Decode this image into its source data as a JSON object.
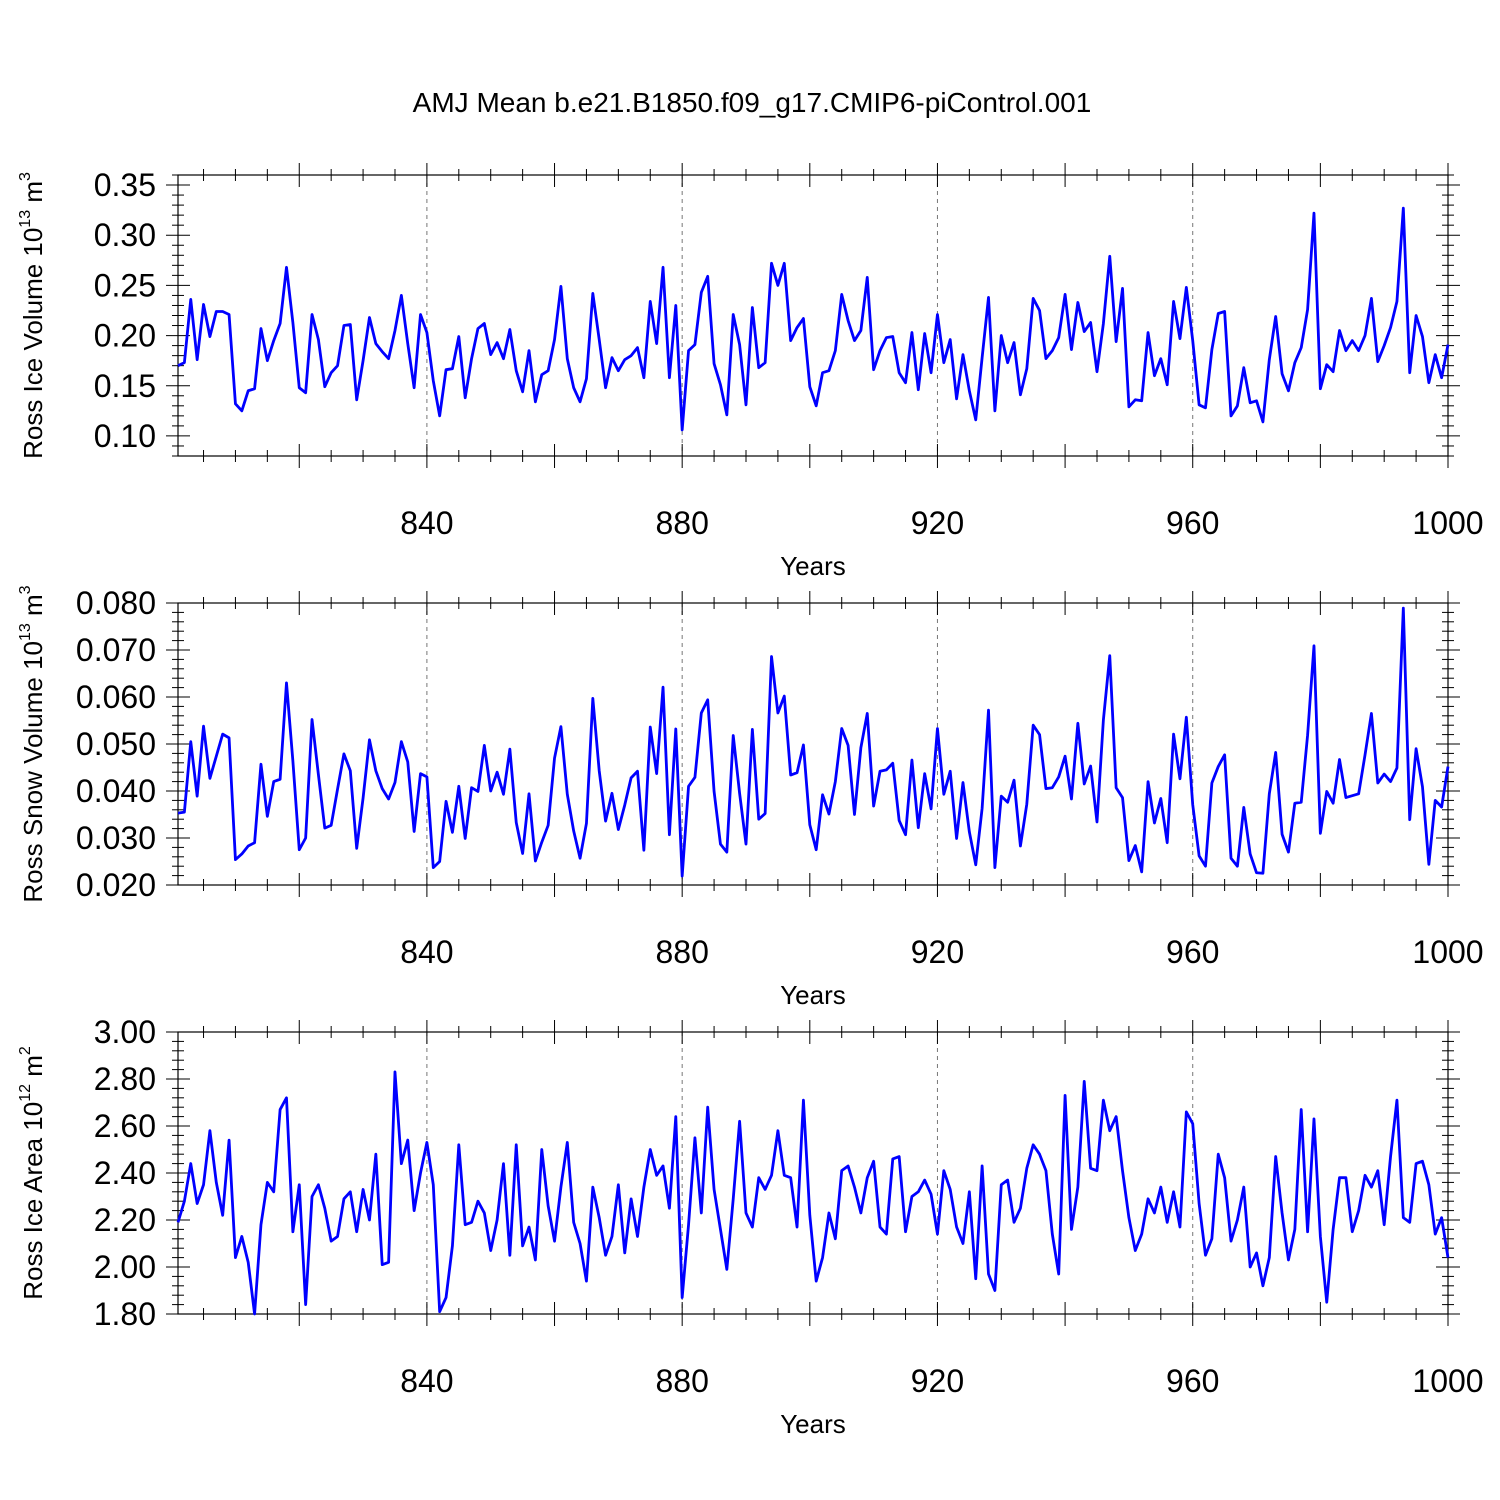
{
  "title": "AMJ Mean b.e21.B1850.f09_g17.CMIP6-piControl.001",
  "chart_data": [
    {
      "type": "line",
      "xlabel": "Years",
      "ylabel": {
        "base": "Ross Ice Volume 10",
        "exp": "13",
        "unit": " m",
        "unit_exp": "3"
      },
      "xlim": [
        801,
        1000
      ],
      "ylim": [
        0.08,
        0.36
      ],
      "xticks": [
        840,
        880,
        920,
        960,
        1000
      ],
      "xtick_labels": [
        "840",
        "880",
        "920",
        "960",
        "1000"
      ],
      "yticks": [
        0.1,
        0.15,
        0.2,
        0.25,
        0.3,
        0.35
      ],
      "ytick_labels": [
        "0.10",
        "0.15",
        "0.20",
        "0.25",
        "0.30",
        "0.35"
      ],
      "grid_x": true,
      "color": "#0000ff",
      "x_start": 801,
      "values": [
        0.17,
        0.173,
        0.236,
        0.176,
        0.231,
        0.199,
        0.224,
        0.224,
        0.221,
        0.132,
        0.125,
        0.145,
        0.147,
        0.207,
        0.175,
        0.195,
        0.212,
        0.268,
        0.213,
        0.148,
        0.143,
        0.221,
        0.196,
        0.149,
        0.163,
        0.17,
        0.21,
        0.211,
        0.136,
        0.175,
        0.218,
        0.192,
        0.184,
        0.177,
        0.205,
        0.24,
        0.192,
        0.148,
        0.221,
        0.203,
        0.155,
        0.12,
        0.166,
        0.167,
        0.199,
        0.138,
        0.177,
        0.207,
        0.212,
        0.181,
        0.193,
        0.177,
        0.206,
        0.165,
        0.144,
        0.185,
        0.134,
        0.161,
        0.165,
        0.196,
        0.249,
        0.177,
        0.148,
        0.134,
        0.157,
        0.242,
        0.196,
        0.148,
        0.178,
        0.165,
        0.176,
        0.18,
        0.188,
        0.158,
        0.234,
        0.192,
        0.268,
        0.158,
        0.23,
        0.106,
        0.185,
        0.191,
        0.243,
        0.259,
        0.172,
        0.151,
        0.121,
        0.221,
        0.191,
        0.131,
        0.228,
        0.168,
        0.173,
        0.272,
        0.25,
        0.272,
        0.195,
        0.208,
        0.217,
        0.149,
        0.13,
        0.163,
        0.165,
        0.185,
        0.241,
        0.215,
        0.195,
        0.205,
        0.258,
        0.166,
        0.185,
        0.198,
        0.199,
        0.163,
        0.153,
        0.203,
        0.146,
        0.202,
        0.163,
        0.221,
        0.173,
        0.196,
        0.137,
        0.181,
        0.145,
        0.116,
        0.178,
        0.238,
        0.125,
        0.2,
        0.173,
        0.193,
        0.141,
        0.167,
        0.237,
        0.225,
        0.177,
        0.185,
        0.198,
        0.241,
        0.186,
        0.233,
        0.204,
        0.213,
        0.164,
        0.212,
        0.279,
        0.194,
        0.247,
        0.129,
        0.136,
        0.135,
        0.203,
        0.16,
        0.177,
        0.151,
        0.234,
        0.197,
        0.248,
        0.195,
        0.131,
        0.128,
        0.186,
        0.222,
        0.224,
        0.12,
        0.13,
        0.168,
        0.133,
        0.135,
        0.114,
        0.176,
        0.219,
        0.162,
        0.145,
        0.173,
        0.188,
        0.226,
        0.322,
        0.147,
        0.171,
        0.164,
        0.205,
        0.185,
        0.195,
        0.185,
        0.2,
        0.237,
        0.174,
        0.19,
        0.208,
        0.234,
        0.327,
        0.163,
        0.22,
        0.199,
        0.153,
        0.181,
        0.158,
        0.191
      ]
    },
    {
      "type": "line",
      "xlabel": "Years",
      "ylabel": {
        "base": "Ross Snow Volume 10",
        "exp": "13",
        "unit": " m",
        "unit_exp": "3"
      },
      "xlim": [
        801,
        1000
      ],
      "ylim": [
        0.02,
        0.08
      ],
      "xticks": [
        840,
        880,
        920,
        960,
        1000
      ],
      "xtick_labels": [
        "840",
        "880",
        "920",
        "960",
        "1000"
      ],
      "yticks": [
        0.02,
        0.03,
        0.04,
        0.05,
        0.06,
        0.07,
        0.08
      ],
      "ytick_labels": [
        "0.020",
        "0.030",
        "0.040",
        "0.050",
        "0.060",
        "0.070",
        "0.080"
      ],
      "grid_x": true,
      "color": "#0000ff",
      "x_start": 801,
      "values": [
        0.0353,
        0.0355,
        0.0505,
        0.0389,
        0.0538,
        0.0427,
        0.0474,
        0.0521,
        0.0513,
        0.0254,
        0.0266,
        0.0283,
        0.029,
        0.0457,
        0.0346,
        0.042,
        0.0425,
        0.063,
        0.0464,
        0.0275,
        0.03,
        0.0552,
        0.0435,
        0.0321,
        0.0327,
        0.0404,
        0.0479,
        0.0443,
        0.0278,
        0.0385,
        0.0509,
        0.0443,
        0.0405,
        0.0383,
        0.0418,
        0.0505,
        0.0462,
        0.0314,
        0.0437,
        0.043,
        0.0237,
        0.025,
        0.0378,
        0.0312,
        0.041,
        0.0299,
        0.0407,
        0.0399,
        0.0497,
        0.04,
        0.044,
        0.0393,
        0.0489,
        0.0333,
        0.0267,
        0.0394,
        0.0251,
        0.0291,
        0.0327,
        0.047,
        0.0537,
        0.0393,
        0.0315,
        0.0257,
        0.0331,
        0.0597,
        0.0443,
        0.0336,
        0.0395,
        0.0318,
        0.037,
        0.0428,
        0.0442,
        0.0274,
        0.0536,
        0.0437,
        0.0621,
        0.0307,
        0.0532,
        0.0219,
        0.041,
        0.0429,
        0.0566,
        0.0594,
        0.0399,
        0.0287,
        0.027,
        0.0518,
        0.0395,
        0.0287,
        0.0531,
        0.034,
        0.0352,
        0.0686,
        0.0566,
        0.0602,
        0.0434,
        0.0439,
        0.0498,
        0.0328,
        0.0275,
        0.0392,
        0.0351,
        0.042,
        0.0533,
        0.0497,
        0.035,
        0.0492,
        0.0565,
        0.0368,
        0.0442,
        0.0445,
        0.0459,
        0.0337,
        0.0307,
        0.0466,
        0.0322,
        0.0437,
        0.0362,
        0.0533,
        0.0393,
        0.0442,
        0.0299,
        0.0418,
        0.0313,
        0.0243,
        0.0363,
        0.0572,
        0.0237,
        0.0389,
        0.0376,
        0.0423,
        0.0283,
        0.0372,
        0.054,
        0.052,
        0.0405,
        0.0407,
        0.043,
        0.0474,
        0.0383,
        0.0544,
        0.0415,
        0.0453,
        0.0334,
        0.0551,
        0.0688,
        0.0407,
        0.0386,
        0.0252,
        0.0284,
        0.0228,
        0.042,
        0.0332,
        0.0384,
        0.029,
        0.0521,
        0.0426,
        0.0557,
        0.0371,
        0.0262,
        0.024,
        0.0417,
        0.0452,
        0.0477,
        0.0257,
        0.024,
        0.0365,
        0.0266,
        0.0226,
        0.0225,
        0.0394,
        0.0482,
        0.0308,
        0.027,
        0.0374,
        0.0376,
        0.0519,
        0.0709,
        0.031,
        0.0399,
        0.0374,
        0.0467,
        0.0386,
        0.039,
        0.0394,
        0.0477,
        0.0565,
        0.0417,
        0.0436,
        0.042,
        0.0449,
        0.0789,
        0.0339,
        0.049,
        0.0409,
        0.0244,
        0.038,
        0.0366,
        0.0452
      ]
    },
    {
      "type": "line",
      "xlabel": "Years",
      "ylabel": {
        "base": "Ross Ice Area 10",
        "exp": "12",
        "unit": " m",
        "unit_exp": "2"
      },
      "xlim": [
        801,
        1000
      ],
      "ylim": [
        1.8,
        3.0
      ],
      "xticks": [
        840,
        880,
        920,
        960,
        1000
      ],
      "xtick_labels": [
        "840",
        "880",
        "920",
        "960",
        "1000"
      ],
      "yticks": [
        1.8,
        2.0,
        2.2,
        2.4,
        2.6,
        2.8,
        3.0
      ],
      "ytick_labels": [
        "1.80",
        "2.00",
        "2.20",
        "2.40",
        "2.60",
        "2.80",
        "3.00"
      ],
      "grid_x": true,
      "color": "#0000ff",
      "x_start": 801,
      "values": [
        2.19,
        2.28,
        2.44,
        2.27,
        2.35,
        2.58,
        2.36,
        2.22,
        2.54,
        2.04,
        2.13,
        2.02,
        1.8,
        2.18,
        2.36,
        2.32,
        2.67,
        2.72,
        2.15,
        2.35,
        1.84,
        2.3,
        2.35,
        2.25,
        2.11,
        2.13,
        2.29,
        2.32,
        2.15,
        2.33,
        2.2,
        2.48,
        2.01,
        2.02,
        2.83,
        2.44,
        2.54,
        2.24,
        2.4,
        2.53,
        2.35,
        1.81,
        1.87,
        2.09,
        2.52,
        2.18,
        2.19,
        2.28,
        2.23,
        2.07,
        2.2,
        2.44,
        2.05,
        2.52,
        2.09,
        2.17,
        2.03,
        2.5,
        2.26,
        2.11,
        2.34,
        2.53,
        2.19,
        2.1,
        1.94,
        2.34,
        2.21,
        2.05,
        2.13,
        2.35,
        2.06,
        2.29,
        2.13,
        2.34,
        2.5,
        2.39,
        2.43,
        2.25,
        2.64,
        1.87,
        2.18,
        2.55,
        2.23,
        2.68,
        2.33,
        2.16,
        1.99,
        2.29,
        2.62,
        2.23,
        2.17,
        2.38,
        2.33,
        2.39,
        2.58,
        2.39,
        2.38,
        2.17,
        2.71,
        2.22,
        1.94,
        2.04,
        2.23,
        2.12,
        2.41,
        2.43,
        2.34,
        2.23,
        2.38,
        2.45,
        2.17,
        2.14,
        2.46,
        2.47,
        2.15,
        2.3,
        2.32,
        2.37,
        2.31,
        2.14,
        2.41,
        2.33,
        2.17,
        2.1,
        2.32,
        1.95,
        2.43,
        1.97,
        1.9,
        2.35,
        2.37,
        2.19,
        2.25,
        2.42,
        2.52,
        2.48,
        2.41,
        2.14,
        1.97,
        2.73,
        2.16,
        2.34,
        2.79,
        2.42,
        2.41,
        2.71,
        2.58,
        2.64,
        2.41,
        2.21,
        2.07,
        2.14,
        2.29,
        2.23,
        2.34,
        2.19,
        2.32,
        2.17,
        2.66,
        2.61,
        2.27,
        2.05,
        2.12,
        2.48,
        2.38,
        2.11,
        2.2,
        2.34,
        2.0,
        2.06,
        1.92,
        2.04,
        2.47,
        2.23,
        2.03,
        2.16,
        2.67,
        2.15,
        2.63,
        2.13,
        1.85,
        2.16,
        2.38,
        2.38,
        2.15,
        2.24,
        2.39,
        2.34,
        2.41,
        2.18,
        2.47,
        2.71,
        2.21,
        2.19,
        2.44,
        2.45,
        2.35,
        2.14,
        2.21,
        2.04
      ]
    }
  ]
}
